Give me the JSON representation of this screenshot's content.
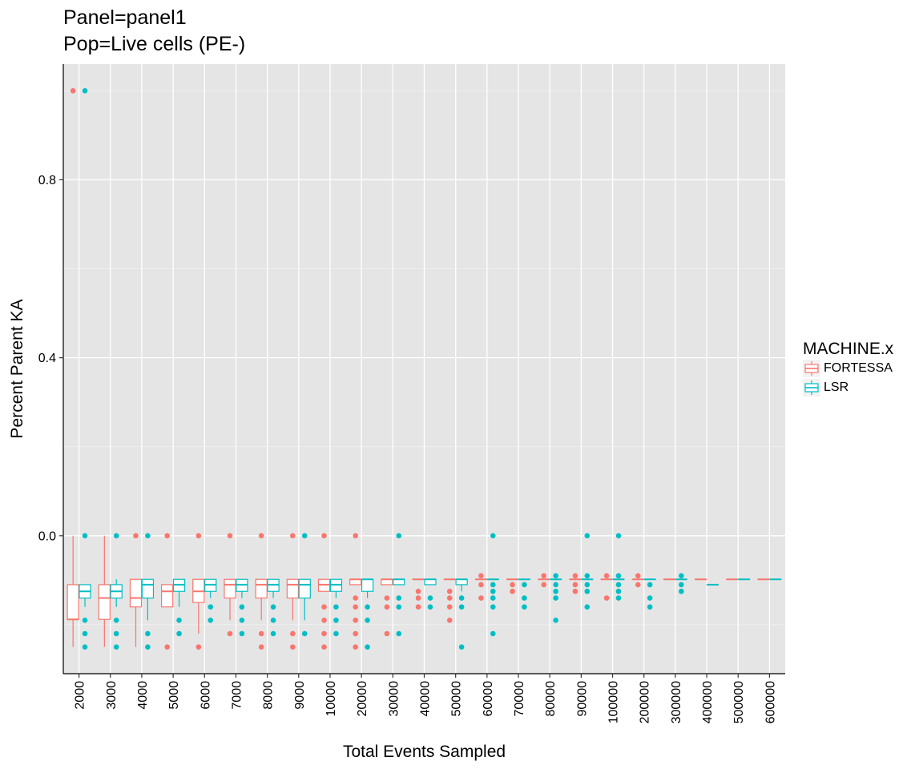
{
  "chart_data": {
    "type": "box",
    "title_lines": [
      "Panel=panel1",
      "Pop=Live cells (PE-)"
    ],
    "xlabel": "Total Events Sampled",
    "ylabel": "Percent Parent KA",
    "y_ticks": [
      0.0,
      0.4,
      0.8
    ],
    "y_tick_labels": [
      "0.0",
      "0.4",
      "0.8"
    ],
    "ylim": [
      -0.31,
      1.06
    ],
    "categories": [
      "2000",
      "3000",
      "4000",
      "5000",
      "6000",
      "7000",
      "8000",
      "9000",
      "10000",
      "20000",
      "30000",
      "40000",
      "50000",
      "60000",
      "70000",
      "80000",
      "90000",
      "100000",
      "200000",
      "300000",
      "400000",
      "500000",
      "600000"
    ],
    "legend": {
      "title": "MACHINE.x",
      "position": "right"
    },
    "grid": true,
    "series": [
      {
        "name": "FORTESSA",
        "color": "#F8766D",
        "boxes": [
          {
            "q1": -0.188,
            "median": -0.188,
            "q3": -0.11,
            "lo": -0.25,
            "hi": 0.0,
            "outliers": [
              1.0
            ]
          },
          {
            "q1": -0.188,
            "median": -0.14,
            "q3": -0.11,
            "lo": -0.25,
            "hi": 0.0,
            "outliers": []
          },
          {
            "q1": -0.16,
            "median": -0.14,
            "q3": -0.098,
            "lo": -0.25,
            "hi": -0.098,
            "outliers": [
              0.0
            ]
          },
          {
            "q1": -0.16,
            "median": -0.125,
            "q3": -0.11,
            "lo": -0.16,
            "hi": -0.11,
            "outliers": [
              0.0,
              -0.25
            ]
          },
          {
            "q1": -0.15,
            "median": -0.125,
            "q3": -0.098,
            "lo": -0.22,
            "hi": -0.098,
            "outliers": [
              0.0,
              -0.25
            ]
          },
          {
            "q1": -0.14,
            "median": -0.11,
            "q3": -0.098,
            "lo": -0.19,
            "hi": -0.098,
            "outliers": [
              0.0,
              -0.22
            ]
          },
          {
            "q1": -0.14,
            "median": -0.11,
            "q3": -0.098,
            "lo": -0.19,
            "hi": -0.098,
            "outliers": [
              0.0,
              -0.22,
              -0.25
            ]
          },
          {
            "q1": -0.14,
            "median": -0.11,
            "q3": -0.098,
            "lo": -0.19,
            "hi": -0.098,
            "outliers": [
              0.0,
              -0.22,
              -0.25
            ]
          },
          {
            "q1": -0.125,
            "median": -0.11,
            "q3": -0.098,
            "lo": -0.125,
            "hi": -0.098,
            "outliers": [
              0.0,
              -0.16,
              -0.19,
              -0.22,
              -0.25
            ]
          },
          {
            "q1": -0.11,
            "median": -0.098,
            "q3": -0.098,
            "lo": -0.11,
            "hi": -0.098,
            "outliers": [
              0.0,
              -0.14,
              -0.16,
              -0.19,
              -0.22,
              -0.25
            ]
          },
          {
            "q1": -0.11,
            "median": -0.098,
            "q3": -0.098,
            "lo": -0.11,
            "hi": -0.098,
            "outliers": [
              -0.14,
              -0.16,
              -0.22
            ]
          },
          {
            "q1": -0.098,
            "median": -0.098,
            "q3": -0.098,
            "lo": -0.098,
            "hi": -0.098,
            "outliers": [
              -0.125,
              -0.14,
              -0.16
            ]
          },
          {
            "q1": -0.098,
            "median": -0.098,
            "q3": -0.098,
            "lo": -0.098,
            "hi": -0.098,
            "outliers": [
              -0.125,
              -0.14,
              -0.16,
              -0.19
            ]
          },
          {
            "q1": -0.098,
            "median": -0.098,
            "q3": -0.098,
            "lo": -0.098,
            "hi": -0.098,
            "outliers": [
              -0.09,
              -0.11,
              -0.14
            ]
          },
          {
            "q1": -0.098,
            "median": -0.098,
            "q3": -0.098,
            "lo": -0.098,
            "hi": -0.098,
            "outliers": [
              -0.11,
              -0.125
            ]
          },
          {
            "q1": -0.098,
            "median": -0.098,
            "q3": -0.098,
            "lo": -0.098,
            "hi": -0.098,
            "outliers": [
              -0.09,
              -0.11
            ]
          },
          {
            "q1": -0.098,
            "median": -0.098,
            "q3": -0.098,
            "lo": -0.098,
            "hi": -0.098,
            "outliers": [
              -0.09,
              -0.11,
              -0.125
            ]
          },
          {
            "q1": -0.098,
            "median": -0.098,
            "q3": -0.098,
            "lo": -0.098,
            "hi": -0.098,
            "outliers": [
              -0.09,
              -0.14
            ]
          },
          {
            "q1": -0.098,
            "median": -0.098,
            "q3": -0.098,
            "lo": -0.098,
            "hi": -0.098,
            "outliers": [
              -0.09,
              -0.11
            ]
          },
          {
            "q1": -0.098,
            "median": -0.098,
            "q3": -0.098,
            "lo": -0.098,
            "hi": -0.098,
            "outliers": []
          },
          {
            "q1": -0.098,
            "median": -0.098,
            "q3": -0.098,
            "lo": -0.098,
            "hi": -0.098,
            "outliers": []
          },
          {
            "q1": -0.098,
            "median": -0.098,
            "q3": -0.098,
            "lo": -0.098,
            "hi": -0.098,
            "outliers": []
          },
          {
            "q1": -0.098,
            "median": -0.098,
            "q3": -0.098,
            "lo": -0.098,
            "hi": -0.098,
            "outliers": []
          }
        ]
      },
      {
        "name": "LSR",
        "color": "#00BFC4",
        "boxes": [
          {
            "q1": -0.14,
            "median": -0.125,
            "q3": -0.11,
            "lo": -0.16,
            "hi": -0.11,
            "outliers": [
              1.0,
              0.0,
              -0.19,
              -0.22,
              -0.25
            ]
          },
          {
            "q1": -0.14,
            "median": -0.125,
            "q3": -0.11,
            "lo": -0.16,
            "hi": -0.098,
            "outliers": [
              0.0,
              -0.19,
              -0.22,
              -0.25
            ]
          },
          {
            "q1": -0.14,
            "median": -0.11,
            "q3": -0.098,
            "lo": -0.19,
            "hi": -0.098,
            "outliers": [
              0.0,
              -0.22,
              -0.25
            ]
          },
          {
            "q1": -0.125,
            "median": -0.11,
            "q3": -0.098,
            "lo": -0.16,
            "hi": -0.098,
            "outliers": [
              -0.19,
              -0.22
            ]
          },
          {
            "q1": -0.125,
            "median": -0.11,
            "q3": -0.098,
            "lo": -0.14,
            "hi": -0.098,
            "outliers": [
              -0.16,
              -0.19
            ]
          },
          {
            "q1": -0.125,
            "median": -0.11,
            "q3": -0.098,
            "lo": -0.14,
            "hi": -0.098,
            "outliers": [
              -0.16,
              -0.19,
              -0.22
            ]
          },
          {
            "q1": -0.125,
            "median": -0.11,
            "q3": -0.098,
            "lo": -0.14,
            "hi": -0.098,
            "outliers": [
              -0.16,
              -0.19,
              -0.22
            ]
          },
          {
            "q1": -0.14,
            "median": -0.11,
            "q3": -0.098,
            "lo": -0.19,
            "hi": -0.098,
            "outliers": [
              0.0,
              -0.22
            ]
          },
          {
            "q1": -0.125,
            "median": -0.11,
            "q3": -0.098,
            "lo": -0.14,
            "hi": -0.098,
            "outliers": [
              -0.16,
              -0.19,
              -0.22
            ]
          },
          {
            "q1": -0.125,
            "median": -0.098,
            "q3": -0.098,
            "lo": -0.14,
            "hi": -0.098,
            "outliers": [
              -0.16,
              -0.19,
              -0.25
            ]
          },
          {
            "q1": -0.11,
            "median": -0.098,
            "q3": -0.098,
            "lo": -0.11,
            "hi": -0.098,
            "outliers": [
              0.0,
              -0.14,
              -0.16,
              -0.22
            ]
          },
          {
            "q1": -0.11,
            "median": -0.098,
            "q3": -0.098,
            "lo": -0.11,
            "hi": -0.098,
            "outliers": [
              -0.14,
              -0.16
            ]
          },
          {
            "q1": -0.11,
            "median": -0.098,
            "q3": -0.098,
            "lo": -0.125,
            "hi": -0.098,
            "outliers": [
              -0.14,
              -0.16,
              -0.25
            ]
          },
          {
            "q1": -0.098,
            "median": -0.098,
            "q3": -0.098,
            "lo": -0.098,
            "hi": -0.098,
            "outliers": [
              0.0,
              -0.11,
              -0.125,
              -0.14,
              -0.16,
              -0.22
            ]
          },
          {
            "q1": -0.098,
            "median": -0.098,
            "q3": -0.098,
            "lo": -0.098,
            "hi": -0.098,
            "outliers": [
              -0.11,
              -0.14,
              -0.16
            ]
          },
          {
            "q1": -0.098,
            "median": -0.098,
            "q3": -0.098,
            "lo": -0.098,
            "hi": -0.098,
            "outliers": [
              -0.09,
              -0.11,
              -0.125,
              -0.14,
              -0.19
            ]
          },
          {
            "q1": -0.098,
            "median": -0.098,
            "q3": -0.098,
            "lo": -0.098,
            "hi": -0.098,
            "outliers": [
              0.0,
              -0.09,
              -0.11,
              -0.125,
              -0.16
            ]
          },
          {
            "q1": -0.098,
            "median": -0.098,
            "q3": -0.098,
            "lo": -0.098,
            "hi": -0.098,
            "outliers": [
              0.0,
              -0.09,
              -0.11,
              -0.125,
              -0.14
            ]
          },
          {
            "q1": -0.098,
            "median": -0.098,
            "q3": -0.098,
            "lo": -0.098,
            "hi": -0.098,
            "outliers": [
              -0.11,
              -0.14,
              -0.16
            ]
          },
          {
            "q1": -0.098,
            "median": -0.098,
            "q3": -0.098,
            "lo": -0.098,
            "hi": -0.098,
            "outliers": [
              -0.09,
              -0.11,
              -0.125
            ]
          },
          {
            "q1": -0.11,
            "median": -0.11,
            "q3": -0.11,
            "lo": -0.11,
            "hi": -0.11,
            "outliers": []
          },
          {
            "q1": -0.098,
            "median": -0.098,
            "q3": -0.098,
            "lo": -0.098,
            "hi": -0.098,
            "outliers": []
          },
          {
            "q1": -0.098,
            "median": -0.098,
            "q3": -0.098,
            "lo": -0.098,
            "hi": -0.098,
            "outliers": []
          }
        ]
      }
    ]
  }
}
